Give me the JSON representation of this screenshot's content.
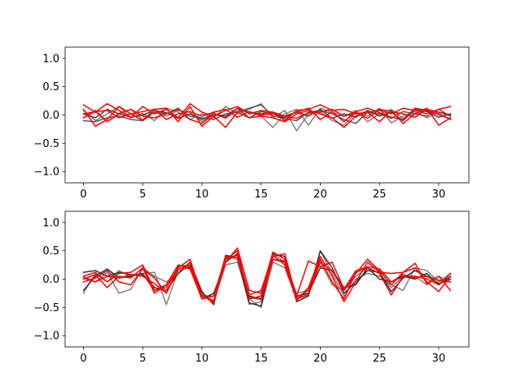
{
  "chart_data": [
    {
      "type": "line",
      "title": "",
      "xlabel": "",
      "ylabel": "",
      "xlim": [
        -1.55,
        32.55
      ],
      "ylim": [
        -1.2,
        1.2
      ],
      "xticks": [
        0,
        5,
        10,
        15,
        20,
        25,
        30
      ],
      "yticks": [
        -1.0,
        -0.5,
        0.0,
        0.5,
        1.0
      ],
      "ytick_labels": [
        "−1.0",
        "−0.5",
        "0.0",
        "0.5",
        "1.0"
      ],
      "grid": false,
      "x": [
        0,
        1,
        2,
        3,
        4,
        5,
        6,
        7,
        8,
        9,
        10,
        11,
        12,
        13,
        14,
        15,
        16,
        17,
        18,
        19,
        20,
        21,
        22,
        23,
        24,
        25,
        26,
        27,
        28,
        29,
        30,
        31
      ],
      "series": [
        {
          "color": "#808080",
          "values": [
            0.08,
            -0.1,
            0.02,
            0.15,
            -0.05,
            0.03,
            -0.1,
            0.12,
            0.05,
            -0.08,
            0.02,
            -0.05,
            0.15,
            0.02,
            0.1,
            0.2,
            -0.05,
            0.08,
            -0.28,
            0.02,
            0.06,
            -0.1,
            -0.18,
            0.04,
            -0.02,
            0.12,
            -0.14,
            -0.02,
            0.06,
            -0.05,
            0.05,
            -0.02
          ]
        },
        {
          "color": "#808080",
          "values": [
            -0.05,
            0.05,
            -0.12,
            0.03,
            0.1,
            -0.08,
            0.05,
            -0.02,
            0.08,
            0.05,
            -0.12,
            0.04,
            -0.06,
            0.08,
            0.05,
            -0.02,
            -0.22,
            0.02,
            0.1,
            -0.18,
            0.12,
            0.05,
            -0.03,
            0.08,
            -0.12,
            0.02,
            0.1,
            -0.06,
            0.03,
            0.08,
            0.0,
            -0.06
          ]
        },
        {
          "color": "#555555",
          "values": [
            -0.1,
            -0.12,
            -0.05,
            -0.02,
            -0.08,
            -0.1,
            0.05,
            0.02,
            0.1,
            -0.02,
            -0.05,
            -0.08,
            0.02,
            0.05,
            0.12,
            0.18,
            -0.02,
            -0.06,
            -0.1,
            0.05,
            0.08,
            0.02,
            -0.08,
            -0.15,
            0.05,
            0.02,
            -0.06,
            0.06,
            0.02,
            -0.02,
            0.1,
            -0.02
          ]
        },
        {
          "color": "#444444",
          "values": [
            0.02,
            -0.05,
            0.1,
            0.02,
            -0.04,
            0.0,
            0.08,
            0.04,
            -0.06,
            0.02,
            -0.08,
            0.02,
            -0.02,
            0.12,
            -0.05,
            0.06,
            0.02,
            -0.05,
            0.05,
            -0.02,
            0.1,
            -0.06,
            0.02,
            -0.04,
            0.08,
            -0.02,
            0.05,
            -0.1,
            0.1,
            0.06,
            -0.04,
            0.02
          ]
        },
        {
          "color": "#ff0000",
          "values": [
            0.18,
            0.05,
            0.2,
            0.08,
            -0.05,
            0.15,
            0.02,
            0.1,
            -0.05,
            0.2,
            0.05,
            -0.02,
            0.08,
            0.15,
            0.02,
            0.08,
            0.05,
            -0.1,
            0.08,
            0.1,
            0.18,
            0.08,
            0.1,
            0.02,
            0.05,
            0.08,
            0.02,
            0.12,
            0.08,
            0.02,
            0.1,
            0.15
          ]
        },
        {
          "color": "#ff0000",
          "values": [
            0.1,
            -0.2,
            -0.08,
            0.15,
            0.02,
            -0.1,
            0.1,
            0.12,
            -0.12,
            0.15,
            -0.2,
            -0.02,
            -0.22,
            0.05,
            -0.05,
            -0.02,
            -0.05,
            -0.12,
            0.02,
            0.08,
            0.02,
            -0.05,
            -0.22,
            -0.02,
            0.05,
            -0.12,
            0.08,
            -0.15,
            0.02,
            0.12,
            -0.18,
            -0.05
          ]
        },
        {
          "color": "#ff0000",
          "values": [
            -0.05,
            0.08,
            -0.12,
            0.02,
            0.1,
            -0.02,
            -0.05,
            0.02,
            0.12,
            -0.08,
            -0.15,
            0.02,
            -0.05,
            0.12,
            0.05,
            0.02,
            0.05,
            -0.02,
            0.05,
            0.12,
            -0.08,
            0.06,
            -0.12,
            0.06,
            0.12,
            0.04,
            -0.04,
            -0.08,
            0.12,
            0.08,
            0.02,
            -0.08
          ]
        },
        {
          "color": "#ff0000",
          "values": [
            0.02,
            0.06,
            0.08,
            -0.05,
            0.02,
            0.06,
            0.1,
            -0.08,
            0.02,
            0.06,
            -0.02,
            0.05,
            0.1,
            -0.04,
            0.06,
            0.0,
            0.02,
            -0.02,
            -0.06,
            0.04,
            0.05,
            0.1,
            -0.02,
            0.04,
            -0.06,
            0.1,
            0.06,
            0.02,
            -0.04,
            0.1,
            0.05,
            0.0
          ]
        }
      ]
    },
    {
      "type": "line",
      "title": "",
      "xlabel": "",
      "ylabel": "",
      "xlim": [
        -1.55,
        32.55
      ],
      "ylim": [
        -1.2,
        1.2
      ],
      "xticks": [
        0,
        5,
        10,
        15,
        20,
        25,
        30
      ],
      "yticks": [
        -1.0,
        -0.5,
        0.0,
        0.5,
        1.0
      ],
      "ytick_labels": [
        "−1.0",
        "−0.5",
        "0.0",
        "0.5",
        "1.0"
      ],
      "grid": false,
      "x": [
        0,
        1,
        2,
        3,
        4,
        5,
        6,
        7,
        8,
        9,
        10,
        11,
        12,
        13,
        14,
        15,
        16,
        17,
        18,
        19,
        20,
        21,
        22,
        23,
        24,
        25,
        26,
        27,
        28,
        29,
        30,
        31
      ],
      "series": [
        {
          "color": "#808080",
          "values": [
            -0.25,
            0.1,
            -0.05,
            0.15,
            0.05,
            0.1,
            0.12,
            -0.45,
            0.15,
            0.2,
            -0.25,
            -0.4,
            0.25,
            0.3,
            -0.35,
            -0.5,
            0.3,
            0.2,
            -0.35,
            -0.25,
            0.5,
            0.1,
            -0.3,
            0.0,
            0.1,
            0.05,
            -0.1,
            -0.2,
            0.2,
            0.15,
            -0.05,
            0.1
          ]
        },
        {
          "color": "#808080",
          "values": [
            0.05,
            -0.05,
            0.12,
            -0.25,
            -0.18,
            0.2,
            0.05,
            -0.05,
            0.1,
            0.25,
            -0.3,
            -0.3,
            0.4,
            0.35,
            -0.45,
            -0.4,
            0.45,
            0.3,
            -0.25,
            -0.2,
            0.3,
            -0.1,
            -0.2,
            0.05,
            0.2,
            0.1,
            -0.15,
            0.05,
            0.05,
            -0.1,
            0.05,
            -0.05
          ]
        },
        {
          "color": "#333333",
          "values": [
            0.12,
            0.15,
            0.05,
            0.12,
            0.08,
            0.08,
            -0.15,
            -0.2,
            0.1,
            0.3,
            -0.22,
            -0.45,
            0.42,
            0.38,
            -0.42,
            -0.48,
            0.45,
            0.4,
            -0.4,
            -0.3,
            0.5,
            0.2,
            -0.25,
            -0.05,
            0.15,
            0.12,
            -0.22,
            0.02,
            0.15,
            0.05,
            -0.08,
            0.0
          ]
        },
        {
          "color": "#333333",
          "values": [
            -0.2,
            0.05,
            0.18,
            0.02,
            0.05,
            0.1,
            -0.2,
            -0.1,
            0.25,
            0.2,
            -0.35,
            -0.25,
            0.3,
            0.45,
            -0.3,
            -0.35,
            0.35,
            0.3,
            -0.3,
            -0.25,
            0.2,
            0.15,
            -0.15,
            -0.1,
            0.2,
            0.0,
            -0.05,
            0.05,
            0.0,
            0.1,
            -0.1,
            0.05
          ]
        },
        {
          "color": "#ff0000",
          "values": [
            0.05,
            0.12,
            -0.05,
            0.1,
            0.12,
            0.25,
            -0.2,
            -0.15,
            0.2,
            0.35,
            -0.3,
            -0.4,
            0.35,
            0.5,
            -0.35,
            -0.3,
            0.4,
            0.45,
            -0.35,
            -0.28,
            0.3,
            0.15,
            -0.2,
            0.1,
            0.35,
            0.15,
            -0.1,
            0.12,
            0.28,
            -0.08,
            0.05,
            -0.2
          ]
        },
        {
          "color": "#ff0000",
          "values": [
            -0.05,
            0.02,
            0.15,
            -0.05,
            -0.1,
            0.18,
            0.02,
            -0.25,
            0.18,
            0.22,
            -0.3,
            -0.38,
            0.3,
            0.55,
            -0.2,
            -0.25,
            0.48,
            0.35,
            -0.32,
            -0.2,
            0.35,
            -0.05,
            -0.35,
            0.12,
            0.2,
            0.1,
            -0.28,
            0.05,
            0.05,
            0.0,
            -0.1,
            0.1
          ]
        },
        {
          "color": "#ff0000",
          "values": [
            0.0,
            0.08,
            -0.15,
            0.05,
            0.02,
            0.2,
            -0.25,
            -0.1,
            0.25,
            0.18,
            -0.35,
            -0.3,
            0.38,
            0.42,
            -0.28,
            -0.2,
            0.42,
            0.25,
            -0.38,
            -0.15,
            0.4,
            0.05,
            -0.4,
            -0.05,
            0.3,
            0.12,
            0.1,
            0.12,
            0.2,
            -0.05,
            -0.22,
            0.05
          ]
        },
        {
          "color": "#ff0000",
          "values": [
            0.02,
            -0.05,
            0.05,
            0.02,
            0.08,
            0.05,
            -0.08,
            -0.25,
            0.22,
            0.25,
            -0.28,
            -0.42,
            0.4,
            0.38,
            -0.32,
            -0.36,
            0.35,
            0.32,
            -0.3,
            0.32,
            0.22,
            0.3,
            -0.18,
            0.15,
            0.22,
            0.18,
            -0.05,
            0.08,
            0.02,
            0.05,
            -0.02,
            -0.05
          ]
        }
      ]
    }
  ]
}
